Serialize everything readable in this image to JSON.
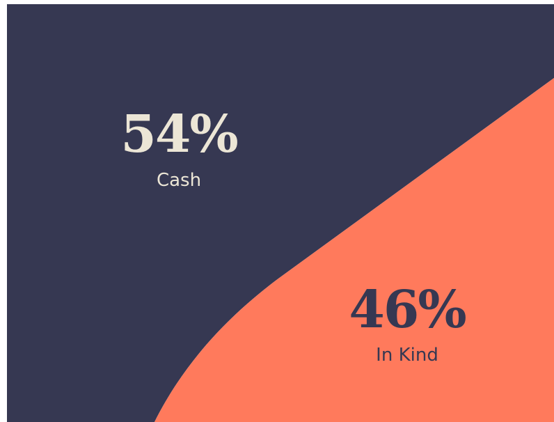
{
  "chart_data": {
    "type": "split",
    "categories": [
      "Cash",
      "In Kind"
    ],
    "values": [
      54,
      46
    ],
    "value_labels": [
      "54%",
      "46%"
    ],
    "colors": [
      "#363852",
      "#ff7a5c"
    ],
    "label_colors": [
      "#ece6d6",
      "#363852"
    ]
  }
}
